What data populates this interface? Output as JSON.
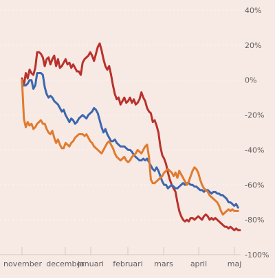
{
  "chart_data": {
    "type": "line",
    "title": "",
    "xlabel": "",
    "ylabel": "",
    "x_tick_labels": [
      "november",
      "december",
      "januari",
      "februari",
      "mars",
      "april",
      "maj"
    ],
    "ylim": [
      -100,
      40
    ],
    "y_ticks": [
      40,
      20,
      0,
      -20,
      -40,
      -60,
      -80,
      -100
    ],
    "y_tick_labels": [
      "40%",
      "20%",
      "0%",
      "-20%",
      "-40%",
      "-60%",
      "-80%",
      "-100%"
    ],
    "grid": true,
    "legend": "none",
    "series": [
      {
        "color": "#b8322d",
        "values": [
          1,
          -3,
          4,
          1,
          6,
          4,
          3,
          7,
          16,
          16,
          15,
          13,
          8,
          12,
          13,
          9,
          12,
          14,
          8,
          12,
          7,
          8,
          10,
          12,
          9,
          10,
          7,
          9,
          7,
          5,
          5,
          3,
          10,
          12,
          13,
          14,
          16,
          14,
          11,
          15,
          19,
          21,
          17,
          12,
          8,
          6,
          8,
          3,
          -3,
          -8,
          -11,
          -10,
          -14,
          -12,
          -10,
          -13,
          -12,
          -10,
          -13,
          -11,
          -14,
          -13,
          -11,
          -7,
          -10,
          -12,
          -16,
          -18,
          -19,
          -24,
          -23,
          -26,
          -30,
          -38,
          -43,
          -45,
          -48,
          -53,
          -57,
          -60,
          -62,
          -64,
          -70,
          -75,
          -78,
          -80,
          -81,
          -80,
          -81,
          -79,
          -79,
          -80,
          -79,
          -78,
          -79,
          -80,
          -78,
          -77,
          -78,
          -80,
          -79,
          -80,
          -79,
          -80,
          -81,
          -82,
          -83,
          -84,
          -84,
          -85,
          -84,
          -85,
          -86,
          -85,
          -86,
          -86
        ],
        "x": [
          0,
          1,
          2,
          3,
          4,
          5,
          6,
          7,
          8,
          9,
          10,
          11,
          12,
          13,
          14,
          15,
          16,
          17,
          18,
          19,
          20,
          21,
          22,
          23,
          24,
          25,
          26,
          27,
          28,
          29,
          30,
          31,
          32,
          33,
          34,
          35,
          36,
          37,
          38,
          39,
          40,
          41,
          42,
          43,
          44,
          45,
          46,
          47,
          48,
          49,
          50,
          51,
          52,
          53,
          54,
          55,
          56,
          57,
          58,
          59,
          60,
          61,
          62,
          63,
          64,
          65,
          66,
          67,
          68,
          69,
          70,
          71,
          72,
          73,
          74,
          75,
          76,
          77,
          78,
          79,
          80,
          81,
          82,
          83,
          84,
          85,
          86,
          87,
          88,
          89,
          90,
          91,
          92,
          93,
          94,
          95,
          96,
          97,
          98,
          99,
          100,
          101,
          102,
          103,
          104,
          105,
          106,
          107,
          108,
          109,
          110,
          111,
          112,
          113,
          114,
          115
        ]
      },
      {
        "color": "#3b67ae",
        "values": [
          -1,
          -3,
          -3,
          -2,
          0,
          0,
          -5,
          -3,
          4,
          4,
          4,
          3,
          -4,
          -8,
          -10,
          -9,
          -10,
          -12,
          -13,
          -14,
          -16,
          -18,
          -17,
          -20,
          -22,
          -24,
          -22,
          -23,
          -25,
          -24,
          -22,
          -21,
          -20,
          -21,
          -22,
          -20,
          -19,
          -18,
          -16,
          -17,
          -19,
          -23,
          -27,
          -30,
          -28,
          -31,
          -33,
          -35,
          -35,
          -34,
          -36,
          -37,
          -38,
          -38,
          -38,
          -39,
          -40,
          -40,
          -41,
          -43,
          -44,
          -45,
          -46,
          -46,
          -45,
          -46,
          -45,
          -47,
          -49,
          -51,
          -52,
          -50,
          -52,
          -55,
          -58,
          -60,
          -60,
          -62,
          -61,
          -60,
          -61,
          -62,
          -62,
          -61,
          -60,
          -59,
          -60,
          -59,
          -59,
          -60,
          -60,
          -61,
          -61,
          -62,
          -63,
          -63,
          -64,
          -63,
          -63,
          -64,
          -65,
          -64,
          -64,
          -65,
          -65,
          -66,
          -66,
          -67,
          -68,
          -70,
          -70,
          -71,
          -72,
          -71,
          -73
        ],
        "x": [
          0,
          1,
          2,
          3,
          4,
          5,
          6,
          7,
          8,
          9,
          10,
          11,
          12,
          13,
          14,
          15,
          16,
          17,
          18,
          19,
          20,
          21,
          22,
          23,
          24,
          25,
          26,
          27,
          28,
          29,
          30,
          31,
          32,
          33,
          34,
          35,
          36,
          37,
          38,
          39,
          40,
          41,
          42,
          43,
          44,
          45,
          46,
          47,
          48,
          49,
          50,
          51,
          52,
          53,
          54,
          55,
          56,
          57,
          58,
          59,
          60,
          61,
          62,
          63,
          64,
          65,
          66,
          67,
          68,
          69,
          70,
          71,
          72,
          73,
          74,
          75,
          76,
          77,
          78,
          79,
          80,
          81,
          82,
          83,
          84,
          85,
          86,
          87,
          88,
          89,
          90,
          91,
          92,
          93,
          94,
          95,
          96,
          97,
          98,
          99,
          100,
          101,
          102,
          103,
          104,
          105,
          106,
          107,
          108,
          109,
          110,
          111,
          112,
          113,
          114
        ]
      },
      {
        "color": "#e07b2f",
        "values": [
          0,
          -22,
          -27,
          -24,
          -26,
          -25,
          -28,
          -27,
          -25,
          -24,
          -23,
          -25,
          -25,
          -28,
          -30,
          -31,
          -29,
          -33,
          -36,
          -34,
          -37,
          -39,
          -39,
          -36,
          -37,
          -38,
          -36,
          -35,
          -33,
          -32,
          -31,
          -31,
          -31,
          -32,
          -31,
          -33,
          -35,
          -36,
          -38,
          -39,
          -40,
          -41,
          -42,
          -40,
          -38,
          -36,
          -35,
          -37,
          -39,
          -42,
          -44,
          -45,
          -46,
          -45,
          -44,
          -46,
          -47,
          -46,
          -44,
          -43,
          -42,
          -40,
          -41,
          -42,
          -40,
          -38,
          -37,
          -44,
          -57,
          -59,
          -59,
          -58,
          -57,
          -56,
          -55,
          -53,
          -52,
          -51,
          -52,
          -53,
          -55,
          -53,
          -56,
          -52,
          -54,
          -56,
          -58,
          -60,
          -58,
          -55,
          -52,
          -50,
          -51,
          -53,
          -57,
          -60,
          -62,
          -63,
          -64,
          -66,
          -67,
          -68,
          -69,
          -70,
          -72,
          -75,
          -77,
          -76,
          -75,
          -74,
          -75,
          -74,
          -75,
          -75,
          -75
        ],
        "x": [
          0,
          1,
          2,
          3,
          4,
          5,
          6,
          7,
          8,
          9,
          10,
          11,
          12,
          13,
          14,
          15,
          16,
          17,
          18,
          19,
          20,
          21,
          22,
          23,
          24,
          25,
          26,
          27,
          28,
          29,
          30,
          31,
          32,
          33,
          34,
          35,
          36,
          37,
          38,
          39,
          40,
          41,
          42,
          43,
          44,
          45,
          46,
          47,
          48,
          49,
          50,
          51,
          52,
          53,
          54,
          55,
          56,
          57,
          58,
          59,
          60,
          61,
          62,
          63,
          64,
          65,
          66,
          67,
          68,
          69,
          70,
          71,
          72,
          73,
          74,
          75,
          76,
          77,
          78,
          79,
          80,
          81,
          82,
          83,
          84,
          85,
          86,
          87,
          88,
          89,
          90,
          91,
          92,
          93,
          94,
          95,
          96,
          97,
          98,
          99,
          100,
          101,
          102,
          103,
          104,
          105,
          106,
          107,
          108,
          109,
          110,
          111,
          112,
          113,
          114
        ]
      }
    ]
  }
}
